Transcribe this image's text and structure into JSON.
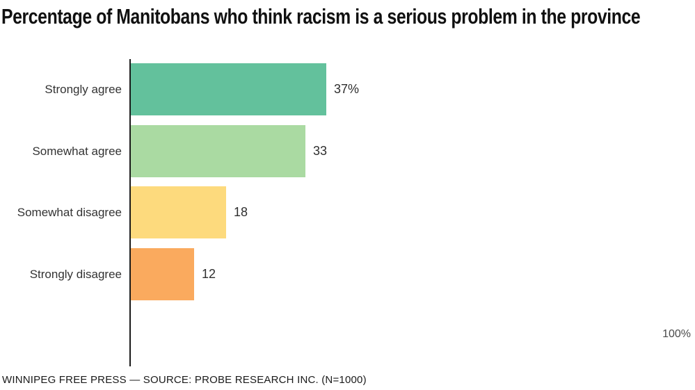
{
  "title": "Percentage of Manitobans who think racism is a serious problem in the province",
  "footer": "WINNIPEG FREE PRESS — SOURCE: PROBE RESEARCH INC. (N=1000)",
  "axis_max_label": "100%",
  "chart_data": {
    "type": "bar",
    "orientation": "horizontal",
    "title": "Percentage of Manitobans who think racism is a serious problem in the province",
    "categories": [
      "Strongly agree",
      "Somewhat agree",
      "Somewhat disagree",
      "Strongly disagree"
    ],
    "values": [
      37,
      33,
      18,
      12
    ],
    "value_labels": [
      "37%",
      "33",
      "18",
      "12"
    ],
    "colors": [
      "#63c19c",
      "#aadaa2",
      "#fdda7d",
      "#faaa5e"
    ],
    "xlim": [
      0,
      100
    ],
    "grid": false,
    "legend": false,
    "source": "WINNIPEG FREE PRESS — SOURCE: PROBE RESEARCH INC. (N=1000)"
  }
}
